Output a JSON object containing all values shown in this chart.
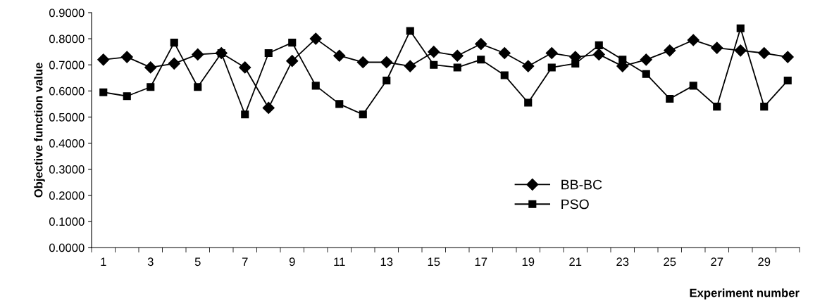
{
  "chart_data": {
    "type": "line",
    "xlabel": "Experiment number",
    "ylabel": "Objective function value",
    "categories": [
      "1",
      null,
      "3",
      null,
      "5",
      null,
      "7",
      null,
      "9",
      null,
      "11",
      null,
      "13",
      null,
      "15",
      null,
      "17",
      null,
      "19",
      null,
      "21",
      null,
      "23",
      null,
      "25",
      null,
      "27",
      null,
      "29",
      null
    ],
    "series": [
      {
        "name": "BB-BC",
        "color": "#000000",
        "marker": "diamond",
        "values": [
          0.72,
          0.73,
          0.69,
          0.705,
          0.74,
          0.745,
          0.69,
          0.535,
          0.715,
          0.8,
          0.735,
          0.71,
          0.71,
          0.695,
          0.75,
          0.735,
          0.78,
          0.745,
          0.695,
          0.745,
          0.73,
          0.74,
          0.695,
          0.72,
          0.755,
          0.795,
          0.765,
          0.755,
          0.745,
          0.73
        ]
      },
      {
        "name": "PSO",
        "color": "#000000",
        "marker": "square",
        "values": [
          0.595,
          0.58,
          0.615,
          0.785,
          0.615,
          0.745,
          0.51,
          0.745,
          0.785,
          0.62,
          0.55,
          0.51,
          0.64,
          0.83,
          0.7,
          0.69,
          0.72,
          0.66,
          0.555,
          0.69,
          0.705,
          0.775,
          0.72,
          0.665,
          0.57,
          0.62,
          0.54,
          0.84,
          0.54,
          0.64
        ]
      }
    ],
    "ylim": [
      0,
      0.9
    ],
    "yticks": [
      {
        "value": 0,
        "label": "0.0000"
      },
      {
        "value": 0.1,
        "label": "0.1000"
      },
      {
        "value": 0.2,
        "label": "0.2000"
      },
      {
        "value": 0.3,
        "label": "0.3000"
      },
      {
        "value": 0.4,
        "label": "0.4000"
      },
      {
        "value": 0.5,
        "label": "0.5000"
      },
      {
        "value": 0.6,
        "label": "0.6000"
      },
      {
        "value": 0.7,
        "label": "0.7000"
      },
      {
        "value": 0.8,
        "label": "0.8000"
      },
      {
        "value": 0.9,
        "label": "0.9000"
      }
    ],
    "grid": false,
    "legend": "bottom",
    "line_style": "solid"
  }
}
